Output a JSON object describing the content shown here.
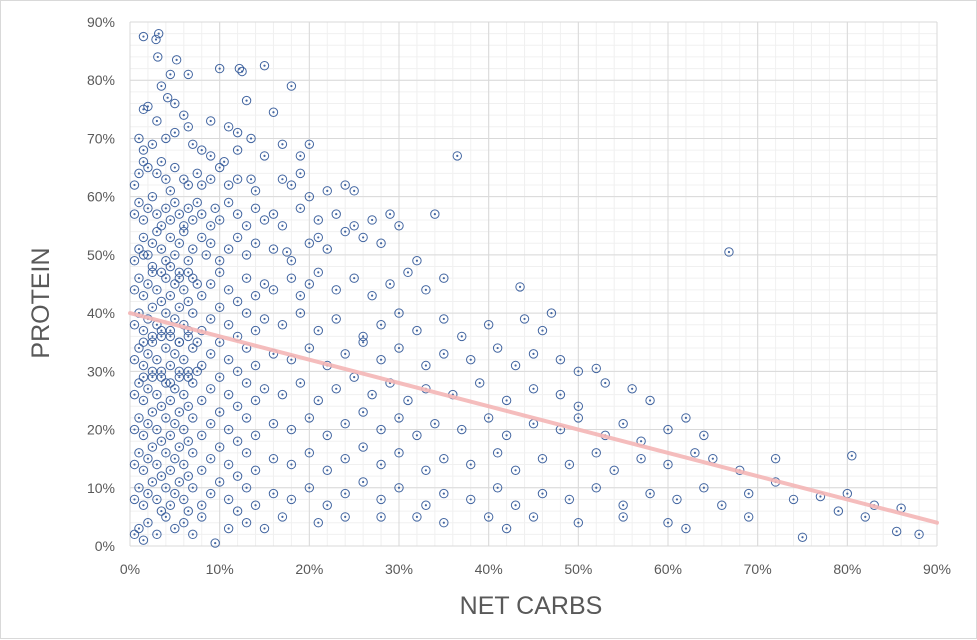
{
  "chart_data": {
    "type": "scatter",
    "title": "",
    "xlabel": "NET CARBS",
    "ylabel": "PROTEIN",
    "xlim": [
      0,
      90
    ],
    "ylim": [
      0,
      90
    ],
    "x_ticks": [
      "0%",
      "10%",
      "20%",
      "30%",
      "40%",
      "50%",
      "60%",
      "70%",
      "80%",
      "90%"
    ],
    "y_ticks": [
      "0%",
      "10%",
      "20%",
      "30%",
      "40%",
      "50%",
      "60%",
      "70%",
      "80%",
      "90%"
    ],
    "grid": "major and minor",
    "legend": "none",
    "marker_color": "#2f5597",
    "trendline": {
      "type": "linear",
      "color": "#f4b6b6",
      "x": [
        0,
        90
      ],
      "y": [
        40,
        4
      ]
    },
    "points": [
      [
        1.5,
        87.5
      ],
      [
        3.2,
        88
      ],
      [
        2.9,
        87
      ],
      [
        3.1,
        84
      ],
      [
        4.5,
        81
      ],
      [
        5.2,
        83.5
      ],
      [
        6.5,
        81
      ],
      [
        10,
        82
      ],
      [
        12.2,
        82
      ],
      [
        12.5,
        81.5
      ],
      [
        15,
        82.5
      ],
      [
        18,
        79
      ],
      [
        1.5,
        75
      ],
      [
        2,
        75.5
      ],
      [
        3.5,
        79
      ],
      [
        4.2,
        77
      ],
      [
        5,
        76
      ],
      [
        6,
        74
      ],
      [
        9,
        73
      ],
      [
        11,
        72
      ],
      [
        12,
        71
      ],
      [
        13,
        76.5
      ],
      [
        16,
        74.5
      ],
      [
        1,
        70
      ],
      [
        1.5,
        68
      ],
      [
        2.5,
        69
      ],
      [
        3,
        73
      ],
      [
        4,
        70
      ],
      [
        5,
        71
      ],
      [
        6.5,
        72
      ],
      [
        7,
        69
      ],
      [
        8,
        68
      ],
      [
        9,
        67
      ],
      [
        10.5,
        66
      ],
      [
        12,
        68
      ],
      [
        13.5,
        70
      ],
      [
        15,
        67
      ],
      [
        17,
        69
      ],
      [
        19,
        67
      ],
      [
        20,
        69
      ],
      [
        0.5,
        62
      ],
      [
        1,
        64
      ],
      [
        1.5,
        66
      ],
      [
        2,
        65
      ],
      [
        3,
        64
      ],
      [
        3.5,
        66
      ],
      [
        4,
        63
      ],
      [
        4.5,
        61
      ],
      [
        5,
        65
      ],
      [
        6,
        63
      ],
      [
        6.5,
        62
      ],
      [
        7.5,
        64
      ],
      [
        8,
        62
      ],
      [
        9,
        63
      ],
      [
        10,
        65
      ],
      [
        11,
        62
      ],
      [
        12,
        63
      ],
      [
        13.5,
        63
      ],
      [
        14,
        61
      ],
      [
        17,
        63
      ],
      [
        18,
        62
      ],
      [
        19,
        64
      ],
      [
        20,
        60
      ],
      [
        22,
        61
      ],
      [
        24,
        62
      ],
      [
        25,
        61
      ],
      [
        36.5,
        67
      ],
      [
        0.5,
        57
      ],
      [
        1,
        59
      ],
      [
        1.5,
        56
      ],
      [
        2,
        58
      ],
      [
        2.5,
        60
      ],
      [
        3,
        57
      ],
      [
        3.5,
        55
      ],
      [
        4,
        58
      ],
      [
        4.5,
        56
      ],
      [
        5,
        59
      ],
      [
        5.5,
        57
      ],
      [
        6,
        55
      ],
      [
        6.5,
        58
      ],
      [
        7,
        56
      ],
      [
        7.5,
        59
      ],
      [
        8,
        57
      ],
      [
        9,
        55
      ],
      [
        9.5,
        58
      ],
      [
        10,
        56
      ],
      [
        11,
        59
      ],
      [
        12,
        57
      ],
      [
        13,
        55
      ],
      [
        14,
        58
      ],
      [
        15,
        56
      ],
      [
        16,
        57
      ],
      [
        17,
        55
      ],
      [
        19,
        58
      ],
      [
        21,
        56
      ],
      [
        23,
        57
      ],
      [
        25,
        55
      ],
      [
        27,
        56
      ],
      [
        29,
        57
      ],
      [
        30,
        55
      ],
      [
        34,
        57
      ],
      [
        0.5,
        49
      ],
      [
        1,
        51
      ],
      [
        1.5,
        53
      ],
      [
        2,
        50
      ],
      [
        2.5,
        52
      ],
      [
        3,
        54
      ],
      [
        3.5,
        51
      ],
      [
        4,
        49
      ],
      [
        4.5,
        53
      ],
      [
        5,
        50
      ],
      [
        5.5,
        52
      ],
      [
        6,
        54
      ],
      [
        6.5,
        49
      ],
      [
        7,
        51
      ],
      [
        8,
        53
      ],
      [
        8.5,
        50
      ],
      [
        9,
        52
      ],
      [
        10,
        49
      ],
      [
        11,
        51
      ],
      [
        12,
        53
      ],
      [
        13,
        50
      ],
      [
        14,
        52
      ],
      [
        16,
        51
      ],
      [
        17.5,
        50.5
      ],
      [
        18,
        49
      ],
      [
        20,
        52
      ],
      [
        21,
        53
      ],
      [
        22,
        51
      ],
      [
        24,
        54
      ],
      [
        26,
        53
      ],
      [
        28,
        52
      ],
      [
        32,
        49
      ],
      [
        66.8,
        50.5
      ],
      [
        0.5,
        44
      ],
      [
        1,
        46
      ],
      [
        1.5,
        43
      ],
      [
        2,
        45
      ],
      [
        2.5,
        47
      ],
      [
        3,
        44
      ],
      [
        3.5,
        42
      ],
      [
        4,
        46
      ],
      [
        4.5,
        43
      ],
      [
        5,
        45
      ],
      [
        5.5,
        47
      ],
      [
        6,
        44
      ],
      [
        6.5,
        42
      ],
      [
        7,
        46
      ],
      [
        8,
        43
      ],
      [
        9,
        45
      ],
      [
        10,
        47
      ],
      [
        11,
        44
      ],
      [
        12,
        42
      ],
      [
        13,
        46
      ],
      [
        14,
        43
      ],
      [
        15,
        45
      ],
      [
        16,
        44
      ],
      [
        18,
        46
      ],
      [
        19,
        43
      ],
      [
        20,
        45
      ],
      [
        21,
        47
      ],
      [
        23,
        44
      ],
      [
        25,
        46
      ],
      [
        27,
        43
      ],
      [
        29,
        45
      ],
      [
        31,
        47
      ],
      [
        33,
        44
      ],
      [
        35,
        46
      ],
      [
        43.5,
        44.5
      ],
      [
        0.5,
        38
      ],
      [
        1,
        40
      ],
      [
        1.5,
        37
      ],
      [
        2,
        39
      ],
      [
        2.5,
        41
      ],
      [
        3,
        38
      ],
      [
        3.5,
        36
      ],
      [
        4,
        40
      ],
      [
        4.5,
        37
      ],
      [
        5,
        39
      ],
      [
        5.5,
        41
      ],
      [
        6,
        38
      ],
      [
        6.5,
        36
      ],
      [
        7,
        40
      ],
      [
        8,
        37
      ],
      [
        9,
        39
      ],
      [
        10,
        41
      ],
      [
        11,
        38
      ],
      [
        12,
        36
      ],
      [
        13,
        40
      ],
      [
        14,
        37
      ],
      [
        15,
        39
      ],
      [
        17,
        38
      ],
      [
        19,
        40
      ],
      [
        21,
        37
      ],
      [
        23,
        39
      ],
      [
        26,
        36
      ],
      [
        28,
        38
      ],
      [
        30,
        40
      ],
      [
        32,
        37
      ],
      [
        35,
        39
      ],
      [
        37,
        36
      ],
      [
        40,
        38
      ],
      [
        44,
        39
      ],
      [
        46,
        37
      ],
      [
        47,
        40
      ],
      [
        0.5,
        32
      ],
      [
        1,
        34
      ],
      [
        1.5,
        31
      ],
      [
        2,
        33
      ],
      [
        2.5,
        35
      ],
      [
        3,
        32
      ],
      [
        3.5,
        30
      ],
      [
        4,
        34
      ],
      [
        4.5,
        31
      ],
      [
        5,
        33
      ],
      [
        5.5,
        35
      ],
      [
        6,
        32
      ],
      [
        6.5,
        30
      ],
      [
        7,
        34
      ],
      [
        8,
        31
      ],
      [
        9,
        33
      ],
      [
        10,
        35
      ],
      [
        11,
        32
      ],
      [
        12,
        30
      ],
      [
        13,
        34
      ],
      [
        14,
        31
      ],
      [
        16,
        33
      ],
      [
        18,
        32
      ],
      [
        20,
        34
      ],
      [
        22,
        31
      ],
      [
        24,
        33
      ],
      [
        26,
        35
      ],
      [
        28,
        32
      ],
      [
        30,
        34
      ],
      [
        33,
        31
      ],
      [
        35,
        33
      ],
      [
        38,
        32
      ],
      [
        41,
        34
      ],
      [
        43,
        31
      ],
      [
        45,
        33
      ],
      [
        48,
        32
      ],
      [
        50,
        30
      ],
      [
        52,
        30.5
      ],
      [
        0.5,
        26
      ],
      [
        1,
        28
      ],
      [
        1.5,
        25
      ],
      [
        2,
        27
      ],
      [
        2.5,
        29
      ],
      [
        3,
        26
      ],
      [
        3.5,
        24
      ],
      [
        4,
        28
      ],
      [
        4.5,
        25
      ],
      [
        5,
        27
      ],
      [
        5.5,
        29
      ],
      [
        6,
        26
      ],
      [
        6.5,
        24
      ],
      [
        7,
        28
      ],
      [
        8,
        25
      ],
      [
        9,
        27
      ],
      [
        10,
        29
      ],
      [
        11,
        26
      ],
      [
        12,
        24
      ],
      [
        13,
        28
      ],
      [
        14,
        25
      ],
      [
        15,
        27
      ],
      [
        17,
        26
      ],
      [
        19,
        28
      ],
      [
        21,
        25
      ],
      [
        23,
        27
      ],
      [
        25,
        29
      ],
      [
        27,
        26
      ],
      [
        29,
        28
      ],
      [
        31,
        25
      ],
      [
        33,
        27
      ],
      [
        36,
        26
      ],
      [
        39,
        28
      ],
      [
        42,
        25
      ],
      [
        45,
        27
      ],
      [
        48,
        26
      ],
      [
        50,
        24
      ],
      [
        53,
        28
      ],
      [
        56,
        27
      ],
      [
        58,
        25
      ],
      [
        0.5,
        20
      ],
      [
        1,
        22
      ],
      [
        1.5,
        19
      ],
      [
        2,
        21
      ],
      [
        2.5,
        23
      ],
      [
        3,
        20
      ],
      [
        3.5,
        18
      ],
      [
        4,
        22
      ],
      [
        4.5,
        19
      ],
      [
        5,
        21
      ],
      [
        5.5,
        23
      ],
      [
        6,
        20
      ],
      [
        6.5,
        18
      ],
      [
        7,
        22
      ],
      [
        8,
        19
      ],
      [
        9,
        21
      ],
      [
        10,
        23
      ],
      [
        11,
        20
      ],
      [
        12,
        18
      ],
      [
        13,
        22
      ],
      [
        14,
        19
      ],
      [
        16,
        21
      ],
      [
        18,
        20
      ],
      [
        20,
        22
      ],
      [
        22,
        19
      ],
      [
        24,
        21
      ],
      [
        26,
        23
      ],
      [
        28,
        20
      ],
      [
        30,
        22
      ],
      [
        32,
        19
      ],
      [
        34,
        21
      ],
      [
        37,
        20
      ],
      [
        40,
        22
      ],
      [
        42,
        19
      ],
      [
        45,
        21
      ],
      [
        48,
        20
      ],
      [
        50,
        22
      ],
      [
        53,
        19
      ],
      [
        55,
        21
      ],
      [
        57,
        18
      ],
      [
        60,
        20
      ],
      [
        62,
        22
      ],
      [
        64,
        19
      ],
      [
        0.5,
        14
      ],
      [
        1,
        16
      ],
      [
        1.5,
        13
      ],
      [
        2,
        15
      ],
      [
        2.5,
        17
      ],
      [
        3,
        14
      ],
      [
        3.5,
        12
      ],
      [
        4,
        16
      ],
      [
        4.5,
        13
      ],
      [
        5,
        15
      ],
      [
        5.5,
        17
      ],
      [
        6,
        14
      ],
      [
        6.5,
        12
      ],
      [
        7,
        16
      ],
      [
        8,
        13
      ],
      [
        9,
        15
      ],
      [
        10,
        17
      ],
      [
        11,
        14
      ],
      [
        12,
        12
      ],
      [
        13,
        16
      ],
      [
        14,
        13
      ],
      [
        16,
        15
      ],
      [
        18,
        14
      ],
      [
        20,
        16
      ],
      [
        22,
        13
      ],
      [
        24,
        15
      ],
      [
        26,
        17
      ],
      [
        28,
        14
      ],
      [
        30,
        16
      ],
      [
        33,
        13
      ],
      [
        35,
        15
      ],
      [
        38,
        14
      ],
      [
        41,
        16
      ],
      [
        43,
        13
      ],
      [
        46,
        15
      ],
      [
        49,
        14
      ],
      [
        52,
        16
      ],
      [
        54,
        13
      ],
      [
        57,
        15
      ],
      [
        60,
        14
      ],
      [
        63,
        16
      ],
      [
        65,
        15
      ],
      [
        68,
        13
      ],
      [
        72,
        15
      ],
      [
        80.5,
        15.5
      ],
      [
        0.5,
        8
      ],
      [
        1,
        10
      ],
      [
        1.5,
        7
      ],
      [
        2,
        9
      ],
      [
        2.5,
        11
      ],
      [
        3,
        8
      ],
      [
        3.5,
        6
      ],
      [
        4,
        10
      ],
      [
        4.5,
        7
      ],
      [
        5,
        9
      ],
      [
        5.5,
        11
      ],
      [
        6,
        8
      ],
      [
        6.5,
        6
      ],
      [
        7,
        10
      ],
      [
        8,
        7
      ],
      [
        9,
        9
      ],
      [
        10,
        11
      ],
      [
        11,
        8
      ],
      [
        12,
        6
      ],
      [
        13,
        10
      ],
      [
        14,
        7
      ],
      [
        16,
        9
      ],
      [
        18,
        8
      ],
      [
        20,
        10
      ],
      [
        22,
        7
      ],
      [
        24,
        9
      ],
      [
        26,
        11
      ],
      [
        28,
        8
      ],
      [
        30,
        10
      ],
      [
        33,
        7
      ],
      [
        35,
        9
      ],
      [
        38,
        8
      ],
      [
        41,
        10
      ],
      [
        43,
        7
      ],
      [
        46,
        9
      ],
      [
        49,
        8
      ],
      [
        52,
        10
      ],
      [
        55,
        7
      ],
      [
        58,
        9
      ],
      [
        61,
        8
      ],
      [
        64,
        10
      ],
      [
        66,
        7
      ],
      [
        69,
        9
      ],
      [
        72,
        11
      ],
      [
        74,
        8
      ],
      [
        77,
        8.5
      ],
      [
        80,
        9
      ],
      [
        83,
        7
      ],
      [
        86,
        6.5
      ],
      [
        0.5,
        2
      ],
      [
        1,
        3
      ],
      [
        1.5,
        1
      ],
      [
        2,
        4
      ],
      [
        3,
        2
      ],
      [
        4,
        5
      ],
      [
        5,
        3
      ],
      [
        6,
        4
      ],
      [
        7,
        2
      ],
      [
        8,
        5
      ],
      [
        9.5,
        0.5
      ],
      [
        11,
        3
      ],
      [
        13,
        4
      ],
      [
        15,
        3
      ],
      [
        17,
        5
      ],
      [
        21,
        4
      ],
      [
        24,
        5
      ],
      [
        28,
        5
      ],
      [
        32,
        5
      ],
      [
        35,
        4
      ],
      [
        40,
        5
      ],
      [
        42,
        3
      ],
      [
        45,
        5
      ],
      [
        50,
        4
      ],
      [
        55,
        5
      ],
      [
        60,
        4
      ],
      [
        62,
        3
      ],
      [
        69,
        5
      ],
      [
        75,
        1.5
      ],
      [
        79,
        6
      ],
      [
        82,
        5
      ],
      [
        85.5,
        2.5
      ],
      [
        88,
        2
      ],
      [
        1.5,
        50
      ],
      [
        2.5,
        48
      ],
      [
        3.5,
        47
      ],
      [
        4.5,
        48
      ],
      [
        5.5,
        46
      ],
      [
        6.5,
        47
      ],
      [
        7.5,
        45
      ],
      [
        1.5,
        35
      ],
      [
        2.5,
        36
      ],
      [
        3.5,
        37
      ],
      [
        4.5,
        36
      ],
      [
        5.5,
        35
      ],
      [
        6.5,
        37
      ],
      [
        7.5,
        35
      ],
      [
        1.5,
        29
      ],
      [
        2.5,
        30
      ],
      [
        3.5,
        29
      ],
      [
        4.5,
        28
      ],
      [
        5.5,
        30
      ],
      [
        6.5,
        29
      ],
      [
        7.5,
        30
      ]
    ]
  }
}
